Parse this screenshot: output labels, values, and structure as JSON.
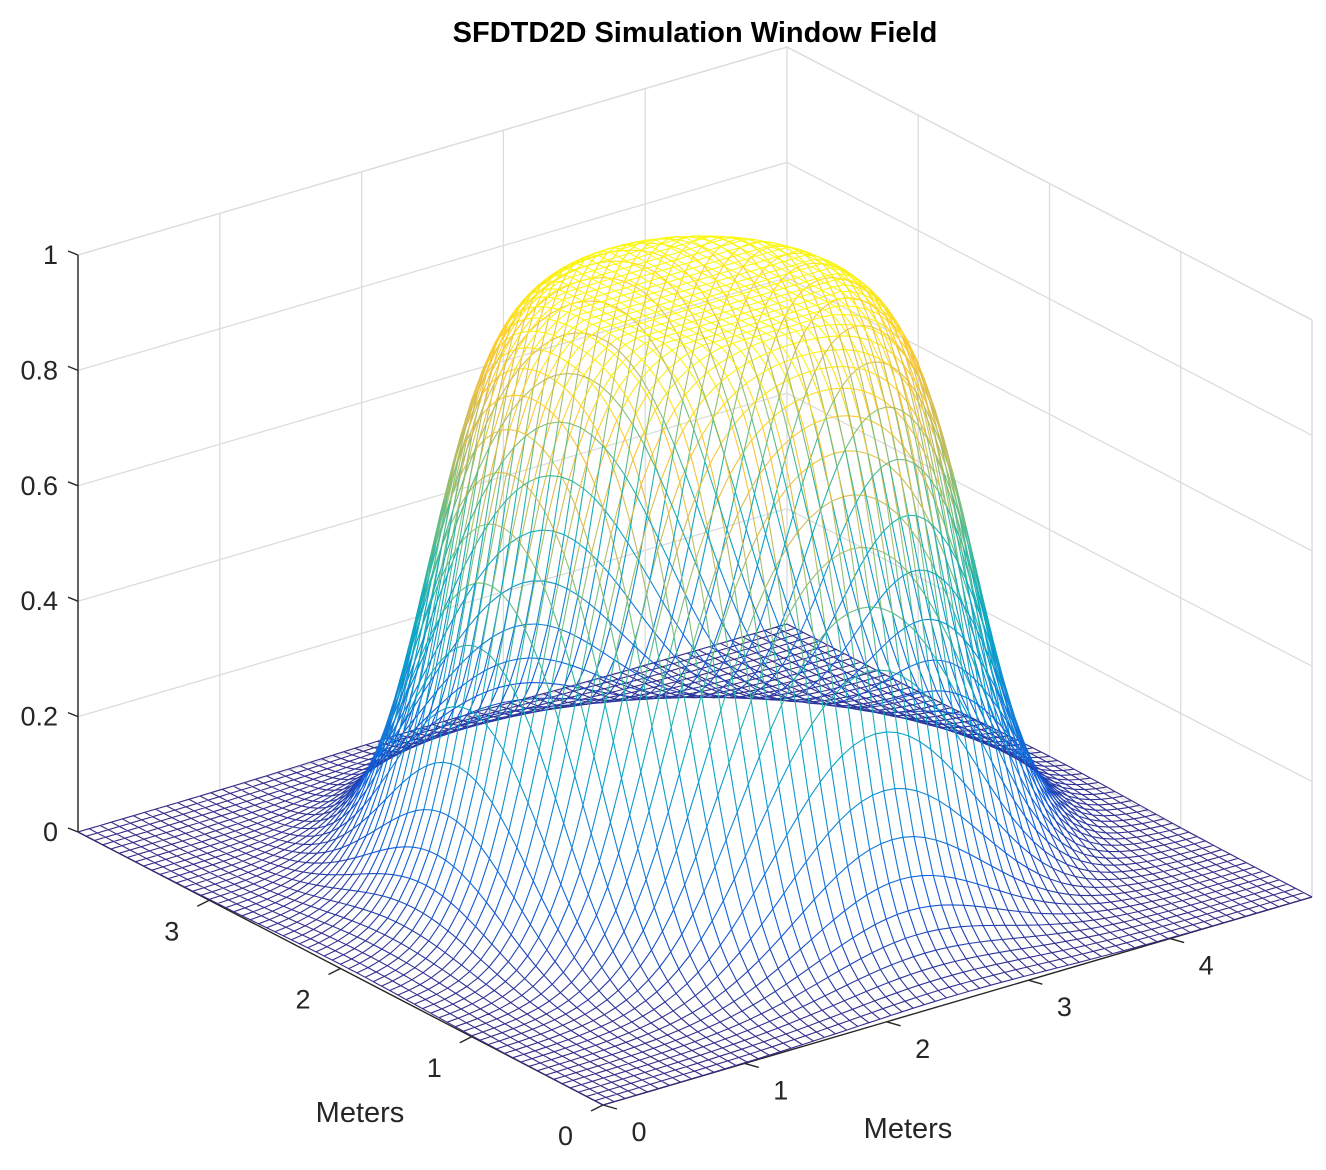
{
  "chart_data": {
    "type": "surface-mesh",
    "title": "SFDTD2D Simulation Window Field",
    "xlabel": "Meters",
    "ylabel": "Meters",
    "zlabel": "",
    "xlim": [
      0,
      5
    ],
    "ylim": [
      0,
      4
    ],
    "zlim": [
      0,
      1
    ],
    "x_ticks": [
      "0",
      "1",
      "2",
      "3",
      "4"
    ],
    "y_ticks": [
      "0",
      "1",
      "2",
      "3"
    ],
    "z_ticks": [
      "0",
      "0.2",
      "0.4",
      "0.6",
      "0.8",
      "1"
    ],
    "grid": true,
    "colormap": "parula",
    "colors": [
      "#352a87",
      "#0f5cdd",
      "#1481d6",
      "#06a4ca",
      "#2eb7a4",
      "#87bf77",
      "#d1bb59",
      "#fec832",
      "#f9fb0e"
    ],
    "surface": {
      "description_function": "super-gaussian window",
      "plateau_value": 1.0,
      "floor_value": 0.0,
      "center_x": 2.5,
      "center_y": 1.95,
      "radius_x": 1.55,
      "radius_y": 1.25,
      "edge_width": 0.35,
      "mesh_lines": 64
    }
  }
}
